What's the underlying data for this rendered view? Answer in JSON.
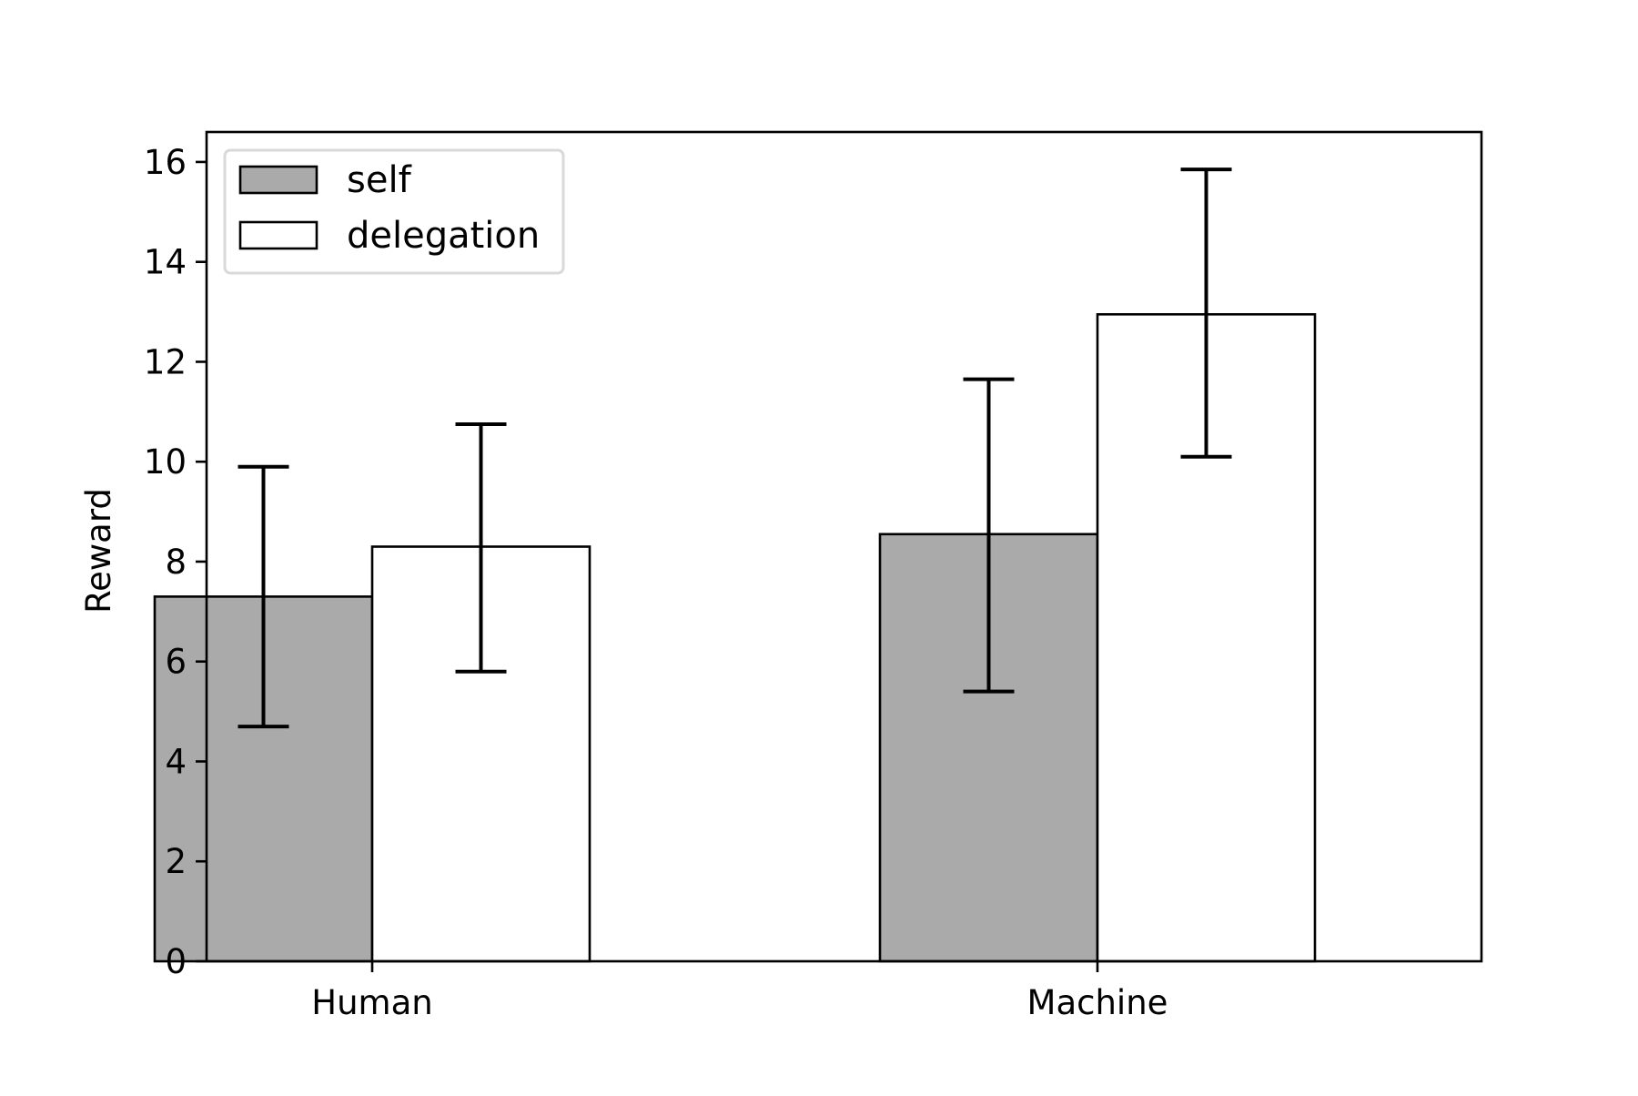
{
  "chart_data": {
    "type": "bar",
    "title": "",
    "xlabel": "",
    "ylabel": "Reward",
    "categories": [
      "Human",
      "Machine"
    ],
    "ylim": [
      0,
      16.6
    ],
    "yticks": [
      0,
      2,
      4,
      6,
      8,
      10,
      12,
      14,
      16
    ],
    "grid": false,
    "legend_position": "top-left",
    "series": [
      {
        "name": "self",
        "color": "#aaaaaa",
        "values": [
          7.3,
          8.55
        ],
        "error_low": [
          4.7,
          5.4
        ],
        "error_high": [
          9.9,
          11.65
        ]
      },
      {
        "name": "delegation",
        "color": "#ffffff",
        "values": [
          8.3,
          12.95
        ],
        "error_low": [
          5.8,
          10.1
        ],
        "error_high": [
          10.75,
          15.85
        ]
      }
    ]
  }
}
